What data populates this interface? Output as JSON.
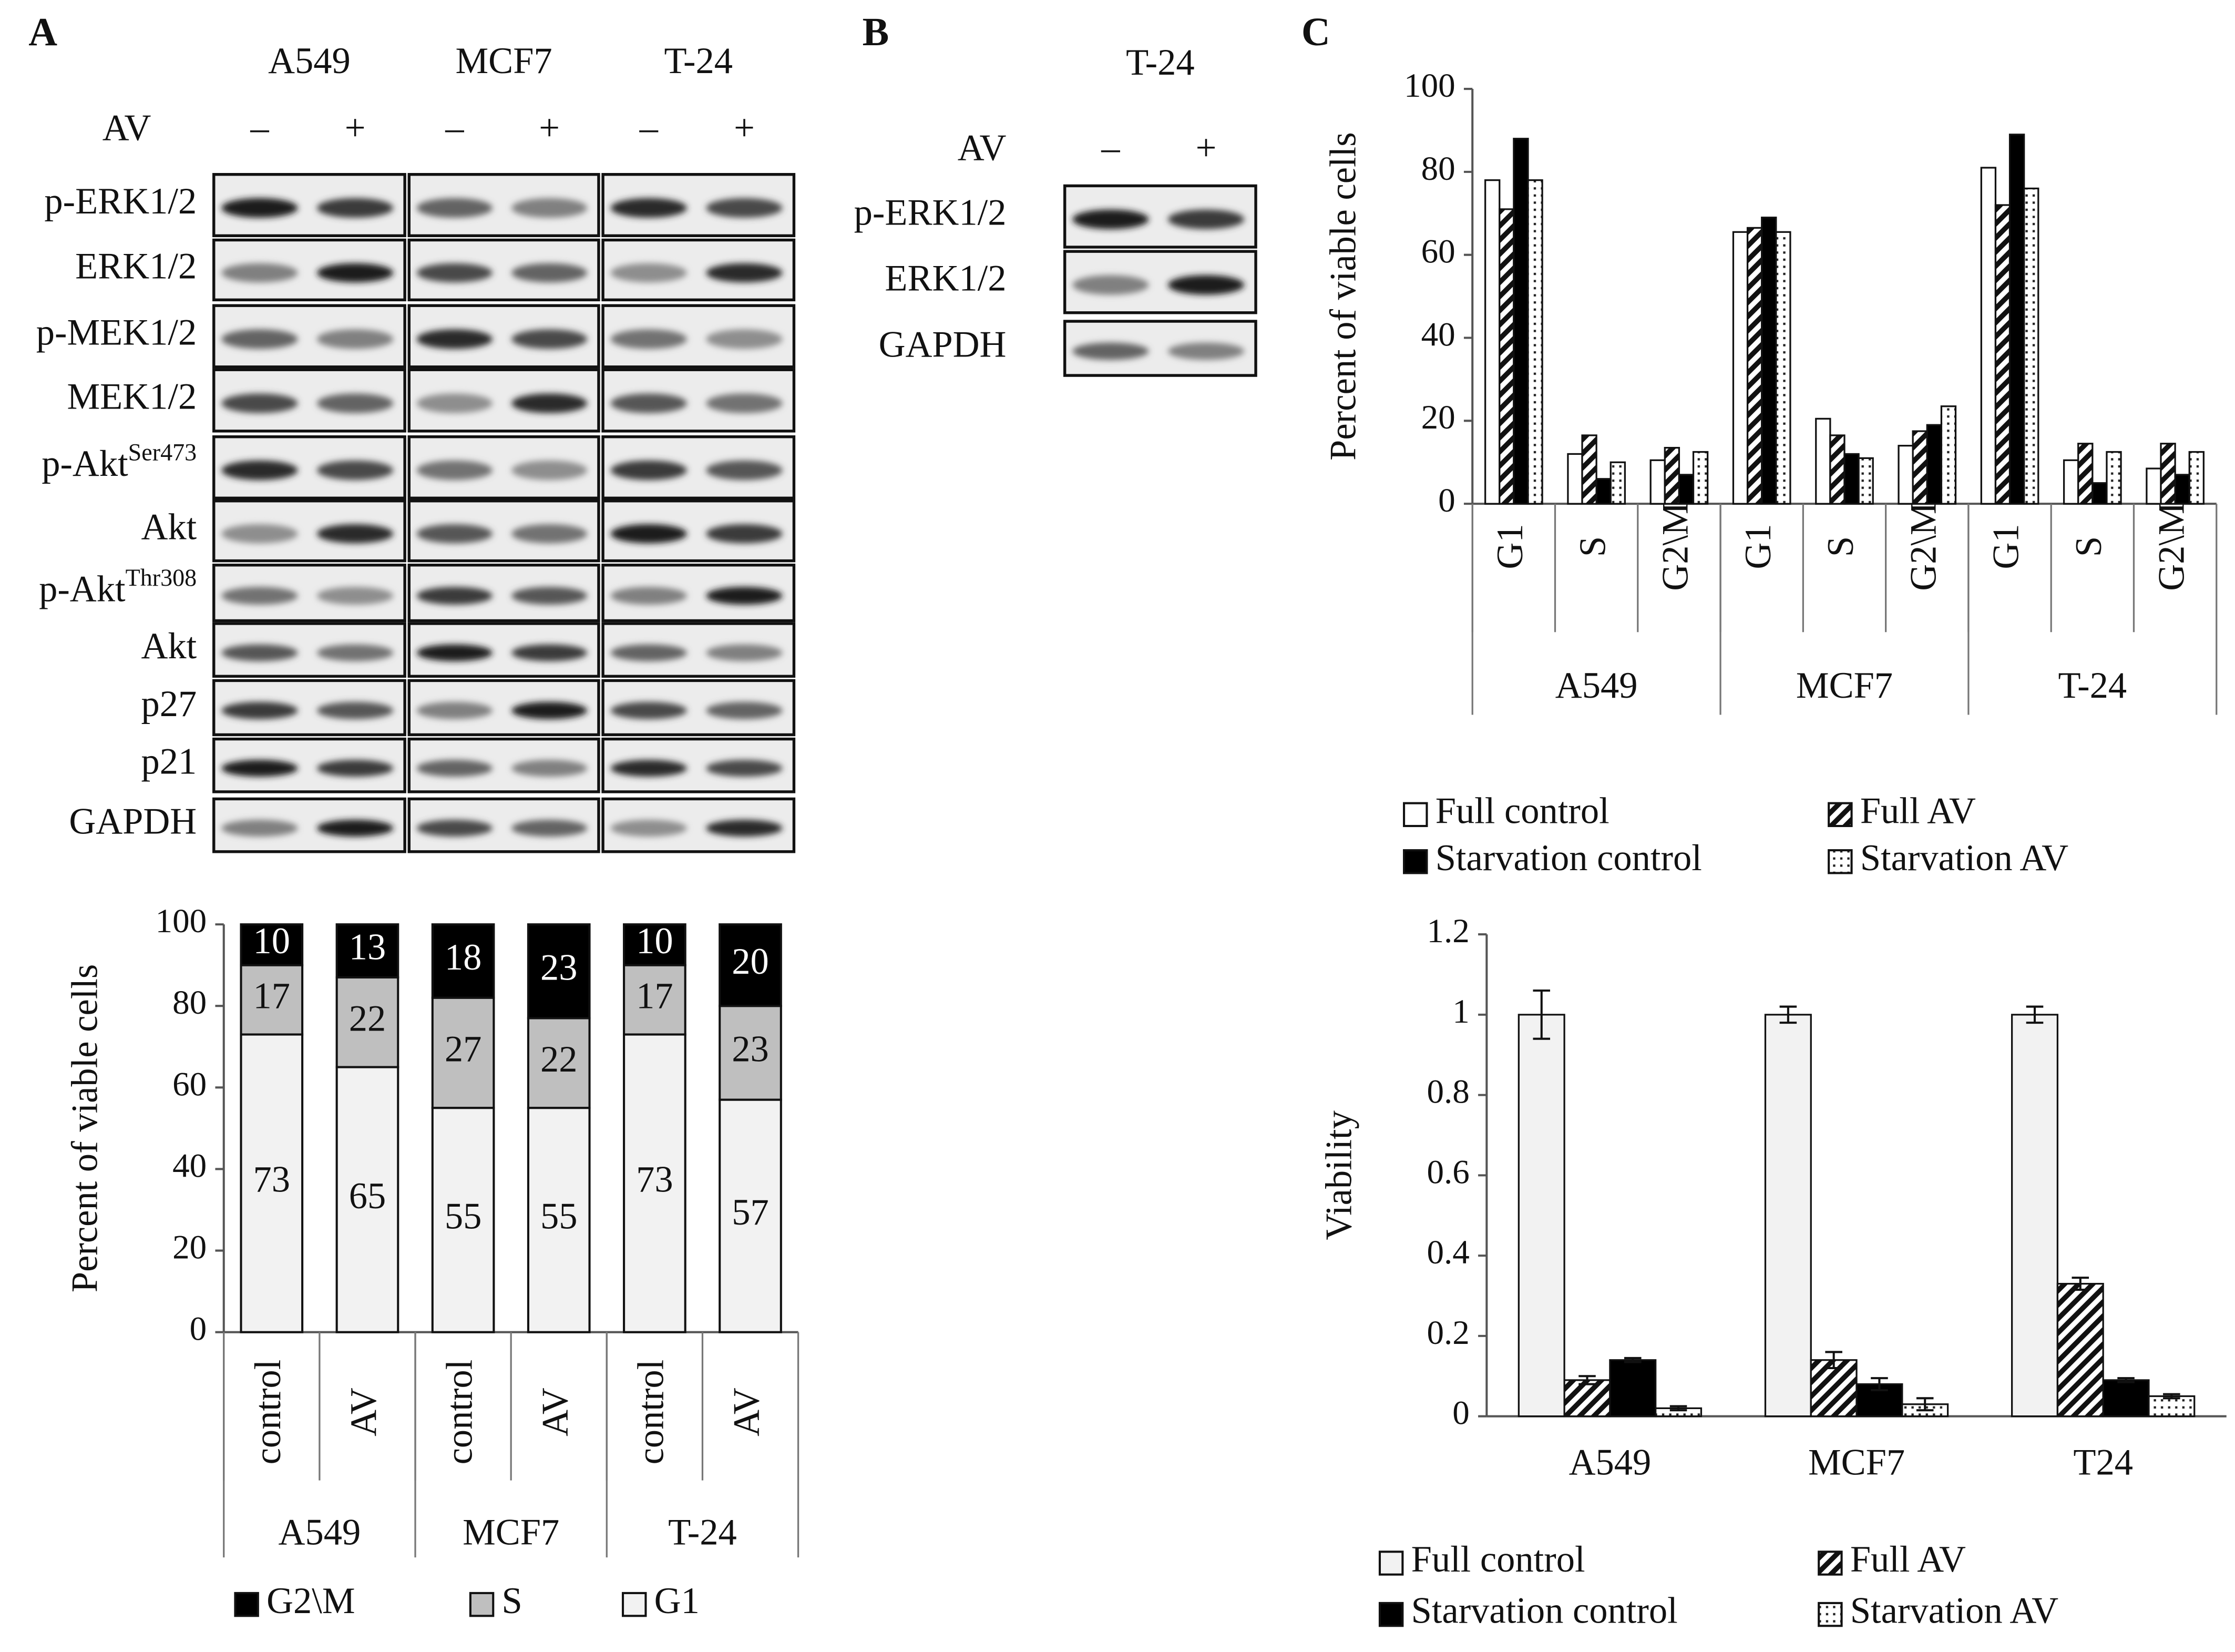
{
  "panel_labels": [
    "A",
    "B",
    "C"
  ],
  "blot_a": {
    "cell_lines": [
      "A549",
      "MCF7",
      "T-24"
    ],
    "treatment": "AV",
    "marks": [
      "–",
      "+"
    ],
    "proteins": [
      {
        "name": "p-ERK1/2"
      },
      {
        "name": "ERK1/2"
      },
      {
        "name": "p-MEK1/2"
      },
      {
        "name": "MEK1/2"
      },
      {
        "name": "p-Akt",
        "superscript": "Ser473"
      },
      {
        "name": "Akt"
      },
      {
        "name": "p-Akt",
        "superscript": "Thr308"
      },
      {
        "name": "Akt"
      },
      {
        "name": "p27"
      },
      {
        "name": "p21"
      },
      {
        "name": "GAPDH"
      }
    ]
  },
  "blot_b": {
    "cell_lines": [
      "T-24"
    ],
    "treatment": "AV",
    "marks": [
      "–",
      "+"
    ],
    "proteins": [
      {
        "name": "p-ERK1/2"
      },
      {
        "name": "ERK1/2"
      },
      {
        "name": "GAPDH"
      }
    ]
  },
  "chart_data": [
    {
      "type": "stacked_bar",
      "y_label": "Percent of viable cells",
      "categories": [
        "control",
        "AV",
        "control",
        "AV",
        "control",
        "AV"
      ],
      "groups": [
        "A549",
        "MCF7",
        "T-24"
      ],
      "series": [
        {
          "name": "G1",
          "color": "#f2f2f2",
          "pattern": "solid",
          "values": [
            73,
            65,
            55,
            55,
            73,
            57
          ]
        },
        {
          "name": "S",
          "color": "#bfbfbf",
          "pattern": "solid",
          "values": [
            17,
            22,
            27,
            22,
            17,
            23
          ]
        },
        {
          "name": "G2\\M",
          "color": "#000000",
          "pattern": "solid",
          "values": [
            10,
            13,
            18,
            23,
            10,
            20
          ]
        }
      ],
      "ylim": [
        0,
        100
      ],
      "yticks": [
        0,
        20,
        40,
        60,
        80,
        100
      ]
    },
    {
      "type": "bar",
      "y_label": "Percent of viable cells",
      "categories": [
        "G1",
        "S",
        "G2\\M",
        "G1",
        "S",
        "G2\\M",
        "G1",
        "S",
        "G2\\M"
      ],
      "groups": [
        "A549",
        "MCF7",
        "T-24"
      ],
      "series": [
        {
          "name": "Full control",
          "color": "#ffffff",
          "pattern": "solid",
          "values": [
            78,
            12,
            10.5,
            65.5,
            20.5,
            14,
            81,
            10.5,
            8.5
          ]
        },
        {
          "name": "Full AV",
          "color": "#000000",
          "pattern": "hatched",
          "values": [
            71,
            16.5,
            13.5,
            66.5,
            16.5,
            17.5,
            72,
            14.5,
            14.5
          ]
        },
        {
          "name": "Starvation control",
          "color": "#000000",
          "pattern": "solid",
          "values": [
            88,
            6,
            7,
            69,
            12,
            19,
            89,
            5,
            7
          ]
        },
        {
          "name": "Starvation AV",
          "color": "#000000",
          "pattern": "dotted",
          "values": [
            78,
            10,
            12.5,
            65.5,
            11,
            23.5,
            76,
            12.5,
            12.5
          ]
        }
      ],
      "ylim": [
        0,
        100
      ],
      "yticks": [
        0,
        20,
        40,
        60,
        80,
        100
      ]
    },
    {
      "type": "bar",
      "y_label": "Viability",
      "categories": [
        "A549",
        "MCF7",
        "T24"
      ],
      "series": [
        {
          "name": "Full control",
          "color": "#f2f2f2",
          "pattern": "solid",
          "values": [
            1,
            1,
            1
          ],
          "errors": [
            0.06,
            0.02,
            0.02
          ]
        },
        {
          "name": "Full AV",
          "color": "#000000",
          "pattern": "hatched",
          "values": [
            0.09,
            0.14,
            0.33
          ],
          "errors": [
            0.01,
            0.02,
            0.015
          ]
        },
        {
          "name": "Starvation control",
          "color": "#000000",
          "pattern": "solid",
          "values": [
            0.14,
            0.08,
            0.09
          ],
          "errors": [
            0.005,
            0.015,
            0.005
          ]
        },
        {
          "name": "Starvation AV",
          "color": "#000000",
          "pattern": "dotted",
          "values": [
            0.02,
            0.03,
            0.05
          ],
          "errors": [
            0.005,
            0.015,
            0.005
          ]
        }
      ],
      "ylim": [
        0,
        1.2
      ],
      "yticks": [
        0,
        0.2,
        0.4,
        0.6,
        0.8,
        1,
        1.2
      ]
    }
  ]
}
